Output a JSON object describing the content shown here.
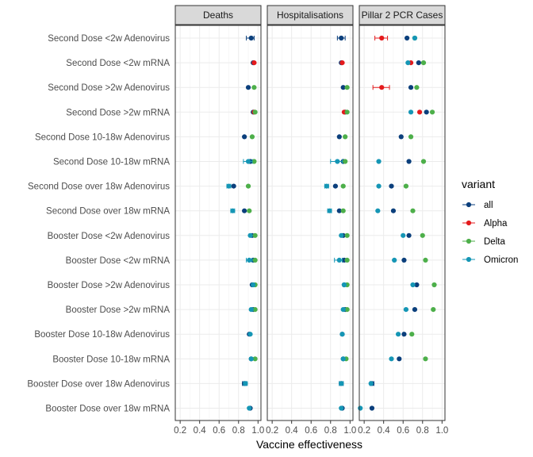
{
  "chart_data": {
    "type": "scatter",
    "xlabel": "Vaccine effectiveness",
    "xlim": [
      0.15,
      1.03
    ],
    "xticks": [
      0.2,
      0.4,
      0.6,
      0.8,
      1.0
    ],
    "xtick_labels": [
      "0.2",
      "0.4",
      "0.6",
      "0.8",
      "1.0"
    ],
    "grid": true,
    "legend_title": "variant",
    "legend_position": "right",
    "panels": [
      "Deaths",
      "Hospitalisations",
      "Pillar 2 PCR Cases"
    ],
    "categories": [
      "Second Dose <2w Adenovirus",
      "Second Dose <2w mRNA",
      "Second Dose >2w Adenovirus",
      "Second Dose >2w mRNA",
      "Second Dose 10-18w Adenovirus",
      "Second Dose 10-18w mRNA",
      "Second Dose over 18w Adenovirus",
      "Second Dose over 18w mRNA",
      "Booster Dose <2w Adenovirus",
      "Booster Dose <2w mRNA",
      "Booster Dose >2w Adenovirus",
      "Booster Dose >2w mRNA",
      "Booster Dose 10-18w Adenovirus",
      "Booster Dose 10-18w mRNA",
      "Booster Dose over 18w Adenovirus",
      "Booster Dose over 18w mRNA"
    ],
    "series": [
      {
        "name": "all",
        "color": "#0b3f7c",
        "points": [
          {
            "panel": 0,
            "cat": 0,
            "x": 0.93,
            "lo": 0.88,
            "hi": 0.96
          },
          {
            "panel": 0,
            "cat": 1,
            "x": 0.95
          },
          {
            "panel": 0,
            "cat": 2,
            "x": 0.9
          },
          {
            "panel": 0,
            "cat": 3,
            "x": 0.95
          },
          {
            "panel": 0,
            "cat": 4,
            "x": 0.86
          },
          {
            "panel": 0,
            "cat": 5,
            "x": 0.92
          },
          {
            "panel": 0,
            "cat": 6,
            "x": 0.75
          },
          {
            "panel": 0,
            "cat": 7,
            "x": 0.86
          },
          {
            "panel": 0,
            "cat": 8,
            "x": 0.94
          },
          {
            "panel": 0,
            "cat": 9,
            "x": 0.95
          },
          {
            "panel": 0,
            "cat": 10,
            "x": 0.94
          },
          {
            "panel": 0,
            "cat": 11,
            "x": 0.95
          },
          {
            "panel": 0,
            "cat": 12,
            "x": 0.91
          },
          {
            "panel": 0,
            "cat": 13,
            "x": 0.93
          },
          {
            "panel": 0,
            "cat": 14,
            "x": 0.86,
            "lo": 0.84,
            "hi": 0.88
          },
          {
            "panel": 0,
            "cat": 15,
            "x": 0.92
          },
          {
            "panel": 1,
            "cat": 0,
            "x": 0.91,
            "lo": 0.87,
            "hi": 0.95
          },
          {
            "panel": 1,
            "cat": 1,
            "x": 0.91
          },
          {
            "panel": 1,
            "cat": 2,
            "x": 0.93
          },
          {
            "panel": 1,
            "cat": 3,
            "x": 0.95
          },
          {
            "panel": 1,
            "cat": 4,
            "x": 0.89
          },
          {
            "panel": 1,
            "cat": 5,
            "x": 0.93
          },
          {
            "panel": 1,
            "cat": 6,
            "x": 0.85
          },
          {
            "panel": 1,
            "cat": 7,
            "x": 0.89
          },
          {
            "panel": 1,
            "cat": 8,
            "x": 0.93
          },
          {
            "panel": 1,
            "cat": 9,
            "x": 0.94
          },
          {
            "panel": 1,
            "cat": 10,
            "x": 0.94
          },
          {
            "panel": 1,
            "cat": 11,
            "x": 0.95
          },
          {
            "panel": 1,
            "cat": 12,
            "x": 0.92
          },
          {
            "panel": 1,
            "cat": 13,
            "x": 0.93
          },
          {
            "panel": 1,
            "cat": 14,
            "x": 0.91,
            "lo": 0.89,
            "hi": 0.93
          },
          {
            "panel": 1,
            "cat": 15,
            "x": 0.92
          },
          {
            "panel": 2,
            "cat": 0,
            "x": 0.64
          },
          {
            "panel": 2,
            "cat": 1,
            "x": 0.76
          },
          {
            "panel": 2,
            "cat": 2,
            "x": 0.68
          },
          {
            "panel": 2,
            "cat": 3,
            "x": 0.84
          },
          {
            "panel": 2,
            "cat": 4,
            "x": 0.58
          },
          {
            "panel": 2,
            "cat": 5,
            "x": 0.66
          },
          {
            "panel": 2,
            "cat": 6,
            "x": 0.48
          },
          {
            "panel": 2,
            "cat": 7,
            "x": 0.5
          },
          {
            "panel": 2,
            "cat": 8,
            "x": 0.66
          },
          {
            "panel": 2,
            "cat": 9,
            "x": 0.61
          },
          {
            "panel": 2,
            "cat": 10,
            "x": 0.74
          },
          {
            "panel": 2,
            "cat": 11,
            "x": 0.72
          },
          {
            "panel": 2,
            "cat": 12,
            "x": 0.61
          },
          {
            "panel": 2,
            "cat": 13,
            "x": 0.56
          },
          {
            "panel": 2,
            "cat": 14,
            "x": 0.28,
            "lo": 0.26,
            "hi": 0.3
          },
          {
            "panel": 2,
            "cat": 15,
            "x": 0.28
          }
        ]
      },
      {
        "name": "Alpha",
        "color": "#e41a1c",
        "points": [
          {
            "panel": 0,
            "cat": 1,
            "x": 0.96
          },
          {
            "panel": 0,
            "cat": 3,
            "x": 0.96
          },
          {
            "panel": 1,
            "cat": 1,
            "x": 0.92
          },
          {
            "panel": 1,
            "cat": 3,
            "x": 0.94
          },
          {
            "panel": 2,
            "cat": 0,
            "x": 0.38,
            "lo": 0.31,
            "hi": 0.44
          },
          {
            "panel": 2,
            "cat": 1,
            "x": 0.68
          },
          {
            "panel": 2,
            "cat": 2,
            "x": 0.38,
            "lo": 0.29,
            "hi": 0.46
          },
          {
            "panel": 2,
            "cat": 3,
            "x": 0.77
          }
        ]
      },
      {
        "name": "Delta",
        "color": "#4daf4a",
        "points": [
          {
            "panel": 0,
            "cat": 2,
            "x": 0.96
          },
          {
            "panel": 0,
            "cat": 3,
            "x": 0.97
          },
          {
            "panel": 0,
            "cat": 4,
            "x": 0.94
          },
          {
            "panel": 0,
            "cat": 5,
            "x": 0.96
          },
          {
            "panel": 0,
            "cat": 6,
            "x": 0.9
          },
          {
            "panel": 0,
            "cat": 7,
            "x": 0.91
          },
          {
            "panel": 0,
            "cat": 8,
            "x": 0.97
          },
          {
            "panel": 0,
            "cat": 9,
            "x": 0.97
          },
          {
            "panel": 0,
            "cat": 10,
            "x": 0.97
          },
          {
            "panel": 0,
            "cat": 11,
            "x": 0.97
          },
          {
            "panel": 0,
            "cat": 13,
            "x": 0.97
          },
          {
            "panel": 1,
            "cat": 2,
            "x": 0.97
          },
          {
            "panel": 1,
            "cat": 3,
            "x": 0.97
          },
          {
            "panel": 1,
            "cat": 4,
            "x": 0.95
          },
          {
            "panel": 1,
            "cat": 5,
            "x": 0.95
          },
          {
            "panel": 1,
            "cat": 6,
            "x": 0.93
          },
          {
            "panel": 1,
            "cat": 7,
            "x": 0.93
          },
          {
            "panel": 1,
            "cat": 8,
            "x": 0.97
          },
          {
            "panel": 1,
            "cat": 9,
            "x": 0.97
          },
          {
            "panel": 1,
            "cat": 10,
            "x": 0.97
          },
          {
            "panel": 1,
            "cat": 11,
            "x": 0.97
          },
          {
            "panel": 1,
            "cat": 13,
            "x": 0.96
          },
          {
            "panel": 2,
            "cat": 0,
            "x": 0.72
          },
          {
            "panel": 2,
            "cat": 1,
            "x": 0.81
          },
          {
            "panel": 2,
            "cat": 2,
            "x": 0.74
          },
          {
            "panel": 2,
            "cat": 3,
            "x": 0.9
          },
          {
            "panel": 2,
            "cat": 4,
            "x": 0.68
          },
          {
            "panel": 2,
            "cat": 5,
            "x": 0.81
          },
          {
            "panel": 2,
            "cat": 6,
            "x": 0.63
          },
          {
            "panel": 2,
            "cat": 7,
            "x": 0.7
          },
          {
            "panel": 2,
            "cat": 8,
            "x": 0.8
          },
          {
            "panel": 2,
            "cat": 9,
            "x": 0.83
          },
          {
            "panel": 2,
            "cat": 10,
            "x": 0.92
          },
          {
            "panel": 2,
            "cat": 11,
            "x": 0.91
          },
          {
            "panel": 2,
            "cat": 12,
            "x": 0.69
          },
          {
            "panel": 2,
            "cat": 13,
            "x": 0.83
          }
        ]
      },
      {
        "name": "Omicron",
        "color": "#1596b5",
        "points": [
          {
            "panel": 0,
            "cat": 5,
            "x": 0.9,
            "lo": 0.85,
            "hi": 0.94
          },
          {
            "panel": 0,
            "cat": 6,
            "x": 0.7,
            "lo": 0.68,
            "hi": 0.72
          },
          {
            "panel": 0,
            "cat": 7,
            "x": 0.74,
            "lo": 0.72,
            "hi": 0.76
          },
          {
            "panel": 0,
            "cat": 8,
            "x": 0.92
          },
          {
            "panel": 0,
            "cat": 9,
            "x": 0.91,
            "lo": 0.88,
            "hi": 0.94
          },
          {
            "panel": 0,
            "cat": 10,
            "x": 0.95
          },
          {
            "panel": 0,
            "cat": 11,
            "x": 0.93
          },
          {
            "panel": 0,
            "cat": 12,
            "x": 0.92
          },
          {
            "panel": 0,
            "cat": 13,
            "x": 0.93
          },
          {
            "panel": 0,
            "cat": 14,
            "x": 0.87,
            "lo": 0.85,
            "hi": 0.89
          },
          {
            "panel": 0,
            "cat": 15,
            "x": 0.91
          },
          {
            "panel": 1,
            "cat": 5,
            "x": 0.87,
            "lo": 0.8,
            "hi": 0.92
          },
          {
            "panel": 1,
            "cat": 6,
            "x": 0.76,
            "lo": 0.74,
            "hi": 0.78
          },
          {
            "panel": 1,
            "cat": 7,
            "x": 0.79,
            "lo": 0.77,
            "hi": 0.81
          },
          {
            "panel": 1,
            "cat": 8,
            "x": 0.91
          },
          {
            "panel": 1,
            "cat": 9,
            "x": 0.89,
            "lo": 0.84,
            "hi": 0.92
          },
          {
            "panel": 1,
            "cat": 10,
            "x": 0.94
          },
          {
            "panel": 1,
            "cat": 11,
            "x": 0.93
          },
          {
            "panel": 1,
            "cat": 12,
            "x": 0.92
          },
          {
            "panel": 1,
            "cat": 13,
            "x": 0.93
          },
          {
            "panel": 1,
            "cat": 14,
            "x": 0.91,
            "lo": 0.89,
            "hi": 0.93
          },
          {
            "panel": 1,
            "cat": 15,
            "x": 0.91
          },
          {
            "panel": 2,
            "cat": 0,
            "x": 0.72
          },
          {
            "panel": 2,
            "cat": 1,
            "x": 0.65
          },
          {
            "panel": 2,
            "cat": 3,
            "x": 0.68
          },
          {
            "panel": 2,
            "cat": 5,
            "x": 0.35
          },
          {
            "panel": 2,
            "cat": 6,
            "x": 0.35
          },
          {
            "panel": 2,
            "cat": 7,
            "x": 0.34
          },
          {
            "panel": 2,
            "cat": 8,
            "x": 0.6
          },
          {
            "panel": 2,
            "cat": 9,
            "x": 0.51
          },
          {
            "panel": 2,
            "cat": 10,
            "x": 0.7
          },
          {
            "panel": 2,
            "cat": 11,
            "x": 0.63
          },
          {
            "panel": 2,
            "cat": 12,
            "x": 0.55
          },
          {
            "panel": 2,
            "cat": 13,
            "x": 0.48
          },
          {
            "panel": 2,
            "cat": 14,
            "x": 0.27
          },
          {
            "panel": 2,
            "cat": 15,
            "x": 0.16
          }
        ]
      }
    ]
  }
}
